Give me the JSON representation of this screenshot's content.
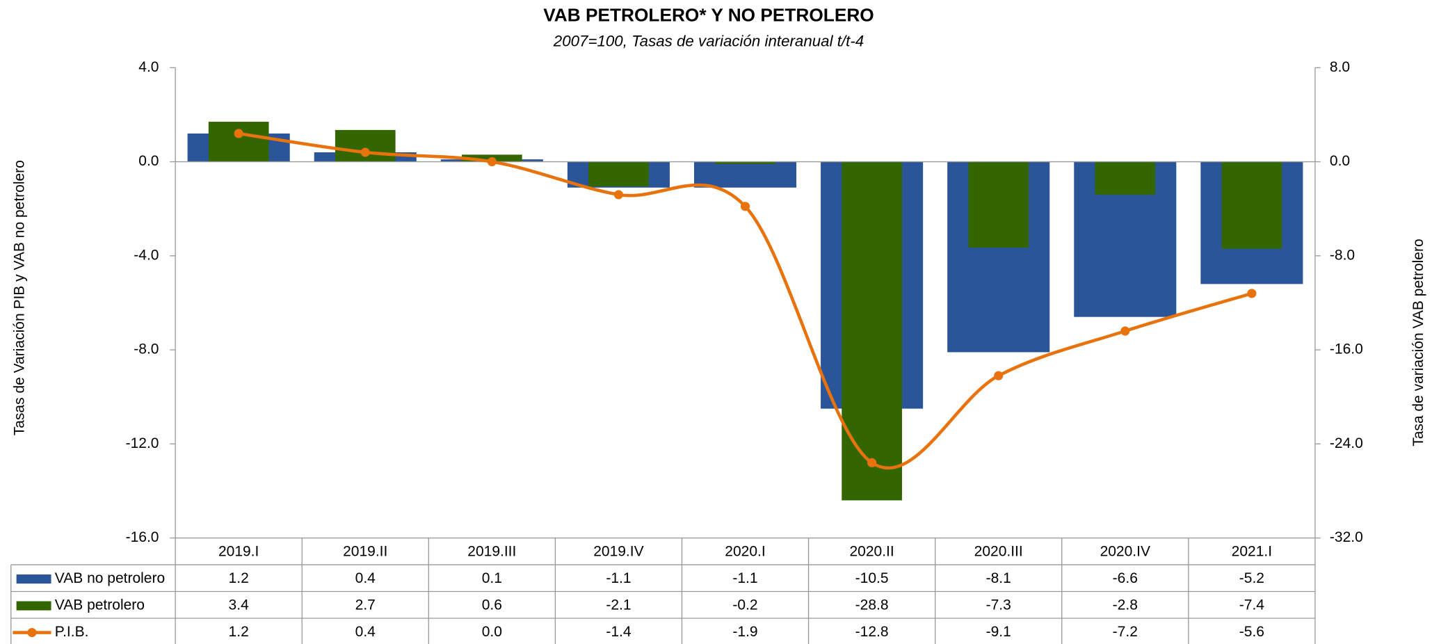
{
  "chart_data": {
    "type": "bar",
    "title": "VAB PETROLERO* Y NO PETROLERO",
    "subtitle": "2007=100, Tasas de variación interanual t/t-4",
    "y_label": "Tasas de Variación PIB y VAB no petrolero",
    "y2_label": "Tasa de variación VAB petrolero",
    "categories": [
      "2019.I",
      "2019.II",
      "2019.III",
      "2019.IV",
      "2020.I",
      "2020.II",
      "2020.III",
      "2020.IV",
      "2021.I"
    ],
    "series": [
      {
        "name": "VAB no petrolero",
        "type": "bar",
        "color": "#2a5599",
        "values": [
          1.2,
          0.4,
          0.1,
          -1.1,
          -1.1,
          -10.5,
          -8.1,
          -6.6,
          -5.2
        ],
        "value_labels": [
          "1.2",
          "0.4",
          "0.1",
          "-1.1",
          "-1.1",
          "-10.5",
          "-8.1",
          "-6.6",
          "-5.2"
        ]
      },
      {
        "name": "VAB petrolero",
        "type": "bar",
        "color": "#336600",
        "axis": "y2",
        "values": [
          3.4,
          2.7,
          0.6,
          -2.1,
          -0.2,
          -28.8,
          -7.3,
          -2.8,
          -7.4
        ],
        "value_labels": [
          "3.4",
          "2.7",
          "0.6",
          "-2.1",
          "-0.2",
          "-28.8",
          "-7.3",
          "-2.8",
          "-7.4"
        ]
      },
      {
        "name": "P.I.B.",
        "type": "line",
        "color": "#e8720c",
        "values": [
          1.2,
          0.4,
          0.0,
          -1.4,
          -1.9,
          -12.8,
          -9.1,
          -7.2,
          -5.6
        ],
        "value_labels": [
          "1.2",
          "0.4",
          "0.0",
          "-1.4",
          "-1.9",
          "-12.8",
          "-9.1",
          "-7.2",
          "-5.6"
        ]
      }
    ],
    "ylim": [
      -16,
      4
    ],
    "yticks": [
      {
        "value": -16,
        "label": "-16.0"
      },
      {
        "value": -12,
        "label": "-12.0"
      },
      {
        "value": -8,
        "label": "-8.0"
      },
      {
        "value": -4,
        "label": "-4.0"
      },
      {
        "value": 0,
        "label": "0.0"
      },
      {
        "value": 4,
        "label": "4.0"
      }
    ],
    "y2lim": [
      -32,
      8
    ],
    "y2ticks": [
      {
        "value": -32,
        "label": "-32.0"
      },
      {
        "value": -24,
        "label": "-24.0"
      },
      {
        "value": -16,
        "label": "-16.0"
      },
      {
        "value": -8,
        "label": "-8.0"
      },
      {
        "value": 0,
        "label": "0.0"
      },
      {
        "value": 8,
        "label": "8.0"
      }
    ],
    "grid": false
  }
}
